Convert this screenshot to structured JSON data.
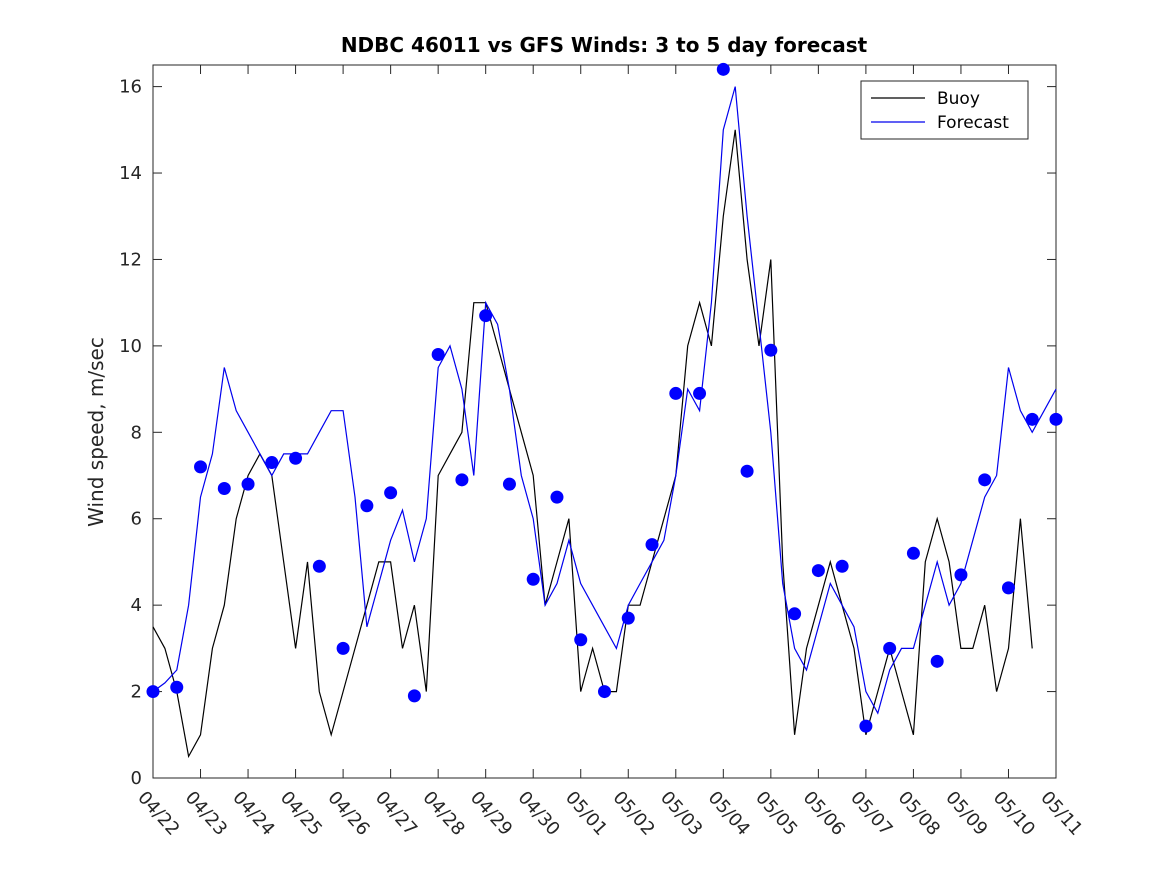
{
  "chart_data": {
    "type": "line",
    "title": "NDBC 46011 vs GFS Winds: 3 to 5 day forecast",
    "xlabel": "",
    "ylabel": "Wind speed, m/sec",
    "xlim": [
      "04/22",
      "05/11"
    ],
    "ylim": [
      0,
      16.5
    ],
    "x_tick_labels": [
      "04/22",
      "04/23",
      "04/24",
      "04/25",
      "04/26",
      "04/27",
      "04/28",
      "04/29",
      "04/30",
      "05/01",
      "05/02",
      "05/03",
      "05/04",
      "05/05",
      "05/06",
      "05/07",
      "05/08",
      "05/09",
      "05/10",
      "05/11"
    ],
    "y_ticks": [
      0,
      2,
      4,
      6,
      8,
      10,
      12,
      14,
      16
    ],
    "grid": false,
    "legend": {
      "placement": "top-right",
      "entries": [
        "Buoy",
        "Forecast"
      ]
    },
    "colors": {
      "buoy": "#000000",
      "forecast": "#0000ee",
      "markers": "#0000ff"
    },
    "series": [
      {
        "name": "Buoy",
        "x": [
          "04/22 00:00",
          "04/22 06:00",
          "04/22 12:00",
          "04/22 18:00",
          "04/23 00:00",
          "04/23 06:00",
          "04/23 12:00",
          "04/23 18:00",
          "04/24 00:00",
          "04/24 06:00",
          "04/24 12:00",
          "04/24 18:00",
          "04/25 00:00",
          "04/25 06:00",
          "04/25 12:00",
          "04/25 18:00",
          "04/26 00:00",
          "04/26 06:00",
          "04/26 12:00",
          "04/26 18:00",
          "04/27 00:00",
          "04/27 06:00",
          "04/27 12:00",
          "04/27 18:00",
          "04/28 00:00",
          "04/28 06:00",
          "04/28 12:00",
          "04/28 18:00",
          "04/29 00:00",
          "04/29 06:00",
          "04/29 12:00",
          "04/29 18:00",
          "04/30 00:00",
          "04/30 06:00",
          "04/30 12:00",
          "04/30 18:00",
          "05/01 00:00",
          "05/01 06:00",
          "05/01 12:00",
          "05/01 18:00",
          "05/02 00:00",
          "05/02 06:00",
          "05/02 12:00",
          "05/02 18:00",
          "05/03 00:00",
          "05/03 06:00",
          "05/03 12:00",
          "05/03 18:00",
          "05/04 00:00",
          "05/04 06:00",
          "05/04 12:00",
          "05/04 18:00",
          "05/05 00:00",
          "05/05 06:00",
          "05/05 12:00",
          "05/05 18:00",
          "05/06 00:00",
          "05/06 06:00",
          "05/06 12:00",
          "05/06 18:00",
          "05/07 00:00",
          "05/07 06:00",
          "05/07 12:00",
          "05/07 18:00",
          "05/08 00:00",
          "05/08 06:00",
          "05/08 12:00",
          "05/08 18:00",
          "05/09 00:00",
          "05/09 06:00",
          "05/09 12:00",
          "05/09 18:00",
          "05/10 00:00",
          "05/10 06:00",
          "05/10 12:00"
        ],
        "y": [
          3.5,
          3,
          2,
          0.5,
          1,
          3,
          4,
          6,
          7,
          7.5,
          7,
          5,
          3,
          5,
          2,
          1,
          2,
          3,
          4,
          5,
          5,
          3,
          4,
          2,
          7,
          7.5,
          8,
          11,
          11,
          10,
          9,
          8,
          7,
          4,
          5,
          6,
          2,
          3,
          2,
          2,
          4,
          4,
          5,
          6,
          7,
          10,
          11,
          10,
          13,
          15,
          12,
          10,
          12,
          5,
          1,
          3,
          4,
          5,
          4,
          3,
          1,
          2,
          3,
          2,
          1,
          5,
          6,
          5,
          3,
          3,
          4,
          2,
          3,
          6,
          3
        ]
      },
      {
        "name": "Forecast",
        "x": [
          "04/22 00:00",
          "04/22 06:00",
          "04/22 12:00",
          "04/22 18:00",
          "04/23 00:00",
          "04/23 06:00",
          "04/23 12:00",
          "04/23 18:00",
          "04/24 00:00",
          "04/24 06:00",
          "04/24 12:00",
          "04/24 18:00",
          "04/25 00:00",
          "04/25 06:00",
          "04/25 12:00",
          "04/25 18:00",
          "04/26 00:00",
          "04/26 06:00",
          "04/26 12:00",
          "04/26 18:00",
          "04/27 00:00",
          "04/27 06:00",
          "04/27 12:00",
          "04/27 18:00",
          "04/28 00:00",
          "04/28 06:00",
          "04/28 12:00",
          "04/28 18:00",
          "04/29 00:00",
          "04/29 06:00",
          "04/29 12:00",
          "04/29 18:00",
          "04/30 00:00",
          "04/30 06:00",
          "04/30 12:00",
          "04/30 18:00",
          "05/01 00:00",
          "05/01 06:00",
          "05/01 12:00",
          "05/01 18:00",
          "05/02 00:00",
          "05/02 06:00",
          "05/02 12:00",
          "05/02 18:00",
          "05/03 00:00",
          "05/03 06:00",
          "05/03 12:00",
          "05/03 18:00",
          "05/04 00:00",
          "05/04 06:00",
          "05/04 12:00",
          "05/04 18:00",
          "05/05 00:00",
          "05/05 06:00",
          "05/05 12:00",
          "05/05 18:00",
          "05/06 00:00",
          "05/06 06:00",
          "05/06 12:00",
          "05/06 18:00",
          "05/07 00:00",
          "05/07 06:00",
          "05/07 12:00",
          "05/07 18:00",
          "05/08 00:00",
          "05/08 06:00",
          "05/08 12:00",
          "05/08 18:00",
          "05/09 00:00",
          "05/09 06:00",
          "05/09 12:00",
          "05/09 18:00",
          "05/10 00:00",
          "05/10 06:00",
          "05/10 12:00",
          "05/10 18:00",
          "05/11 00:00"
        ],
        "y": [
          2,
          2.2,
          2.5,
          4,
          6.5,
          7.5,
          9.5,
          8.5,
          8,
          7.5,
          7,
          7.5,
          7.5,
          7.5,
          8,
          8.5,
          8.5,
          6.5,
          3.5,
          4.5,
          5.5,
          6.2,
          5,
          6,
          9.5,
          10,
          9,
          7,
          11,
          10.5,
          9,
          7,
          6,
          4,
          4.5,
          5.5,
          4.5,
          4,
          3.5,
          3,
          4,
          4.5,
          5,
          5.5,
          7,
          9,
          8.5,
          11,
          15,
          16,
          13,
          10.5,
          8,
          4.5,
          3,
          2.5,
          3.5,
          4.5,
          4,
          3.5,
          2,
          1.5,
          2.5,
          3,
          3,
          4,
          5,
          4,
          4.5,
          5.5,
          6.5,
          7,
          9.5,
          8.5,
          8,
          8.5,
          9
        ]
      },
      {
        "name": "",
        "x": [
          "04/22 00:00",
          "04/22 12:00",
          "04/23 00:00",
          "04/23 12:00",
          "04/24 00:00",
          "04/24 12:00",
          "04/25 00:00",
          "04/25 12:00",
          "04/26 00:00",
          "04/26 12:00",
          "04/27 00:00",
          "04/27 12:00",
          "04/28 00:00",
          "04/28 12:00",
          "04/29 00:00",
          "04/29 12:00",
          "04/30 00:00",
          "04/30 12:00",
          "05/01 00:00",
          "05/01 12:00",
          "05/02 00:00",
          "05/02 12:00",
          "05/03 00:00",
          "05/03 12:00",
          "05/04 00:00",
          "05/04 12:00",
          "05/05 00:00",
          "05/05 12:00",
          "05/06 00:00",
          "05/06 12:00",
          "05/07 00:00",
          "05/07 12:00",
          "05/08 00:00",
          "05/08 12:00",
          "05/09 00:00",
          "05/09 12:00",
          "05/10 00:00",
          "05/10 12:00",
          "05/11 00:00"
        ],
        "y": [
          2,
          2.1,
          7.2,
          6.7,
          6.8,
          7.3,
          7.4,
          4.9,
          3,
          6.3,
          6.6,
          1.9,
          9.8,
          6.9,
          10.7,
          6.8,
          4.6,
          6.5,
          3.2,
          2,
          3.7,
          5.4,
          8.9,
          8.9,
          16.4,
          7.1,
          9.9,
          3.8,
          4.8,
          4.9,
          1.2,
          3,
          5.2,
          2.7,
          4.7,
          6.9,
          4.4,
          8.3,
          8.3
        ]
      }
    ]
  }
}
